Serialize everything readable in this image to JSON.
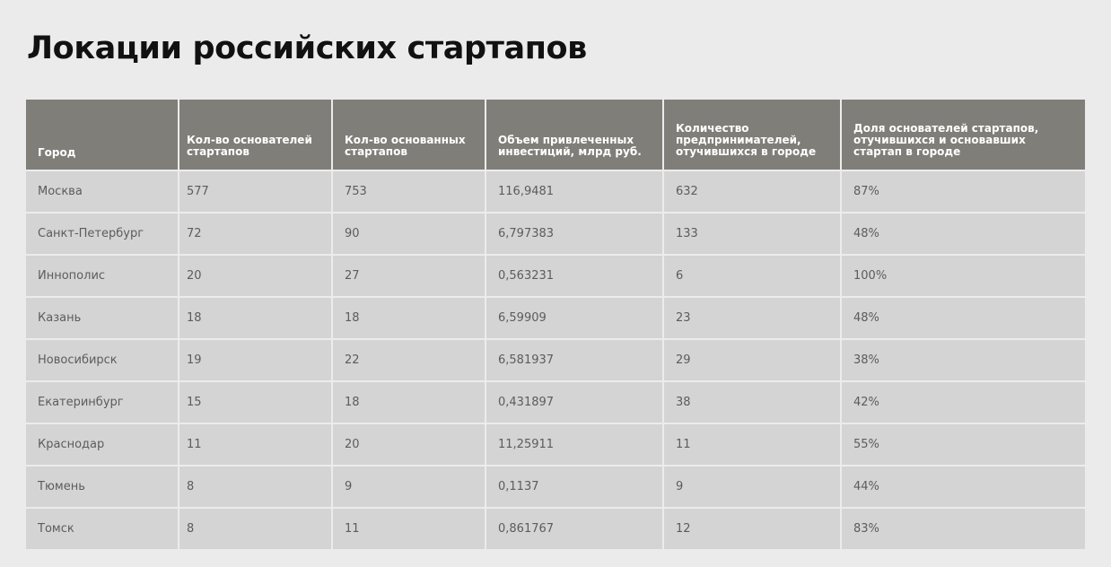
{
  "title": "Локации российских стартапов",
  "table": {
    "columns": [
      "Город",
      "Кол-во основателей стартапов",
      "Кол-во основанных стартапов",
      "Объем привлеченных инвестиций, млрд руб.",
      "Количество предпринимателей, отучившихся в городе",
      "Доля основателей стартапов, отучившихся и основавших стартап в городе"
    ],
    "rows": [
      [
        "Москва",
        "577",
        "753",
        "116,9481",
        "632",
        "87%"
      ],
      [
        "Санкт-Петербург",
        "72",
        "90",
        "6,797383",
        "133",
        "48%"
      ],
      [
        "Иннополис",
        "20",
        "27",
        "0,563231",
        "6",
        "100%"
      ],
      [
        "Казань",
        "18",
        "18",
        "6,59909",
        "23",
        "48%"
      ],
      [
        "Новосибирск",
        "19",
        "22",
        "6,581937",
        "29",
        "38%"
      ],
      [
        "Екатеринбург",
        "15",
        "18",
        "0,431897",
        "38",
        "42%"
      ],
      [
        "Краснодар",
        "11",
        "20",
        "11,25911",
        "11",
        "55%"
      ],
      [
        "Тюмень",
        "8",
        "9",
        "0,1137",
        "9",
        "44%"
      ],
      [
        "Томск",
        "8",
        "11",
        "0,861767",
        "12",
        "83%"
      ]
    ]
  }
}
